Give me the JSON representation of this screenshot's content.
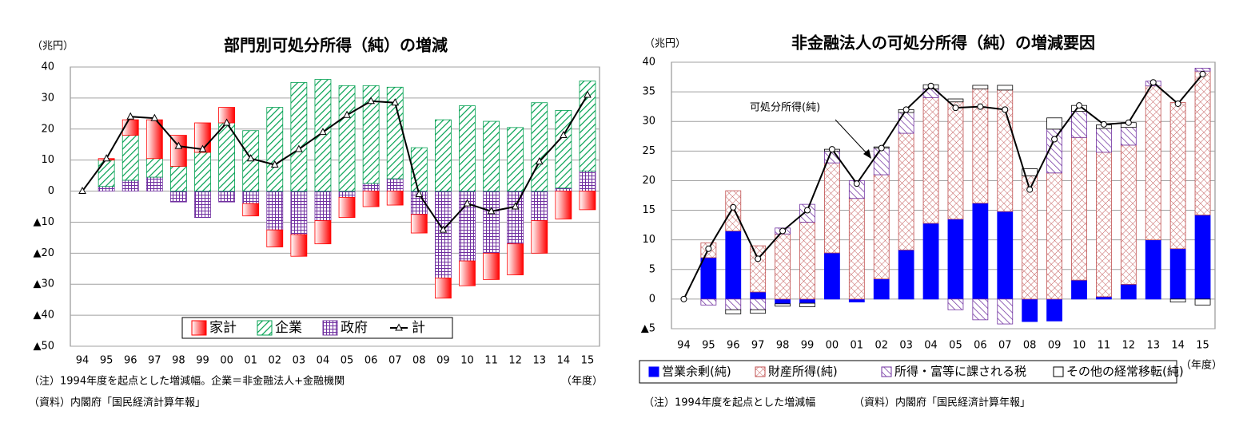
{
  "chart_data": [
    {
      "type": "bar",
      "stacked": true,
      "title": "部門別可処分所得（純）の増減",
      "unit_label": "（兆円）",
      "x_label": "（年度）",
      "notes": [
        "（注）1994年度を起点とした増減幅。企業＝非金融法人+金融機関",
        "（資料）内閣府「国民経済計算年報」"
      ],
      "categories": [
        "94",
        "95",
        "96",
        "97",
        "98",
        "99",
        "00",
        "01",
        "02",
        "03",
        "04",
        "05",
        "06",
        "07",
        "08",
        "09",
        "10",
        "11",
        "12",
        "13",
        "14",
        "15"
      ],
      "ylim": [
        -50,
        40
      ],
      "yticks": [
        40,
        30,
        20,
        10,
        0,
        {
          "value": -10,
          "label": "▲10"
        },
        {
          "value": -20,
          "label": "▲20"
        },
        {
          "value": -30,
          "label": "▲30"
        },
        {
          "value": -40,
          "label": "▲40"
        },
        {
          "value": -50,
          "label": "▲50"
        }
      ],
      "grid": true,
      "legend": "lower center",
      "series": [
        {
          "name": "政府",
          "color": "#7030a0",
          "pattern": "grid",
          "values": [
            0,
            1.5,
            3.5,
            4.5,
            -3.5,
            -8.5,
            -3.5,
            -4,
            -12.5,
            -14,
            -9.5,
            -2,
            2.5,
            4,
            -7.5,
            -28,
            -22.5,
            -20,
            -17,
            -9.5,
            1,
            6.5
          ]
        },
        {
          "name": "企業",
          "color": "#00a050",
          "pattern": "diagonal",
          "values": [
            0,
            8.5,
            14.5,
            6,
            8,
            12.5,
            22,
            19.5,
            27,
            35,
            36,
            34,
            31.5,
            29.5,
            14,
            23,
            27.5,
            22.5,
            20.5,
            28.5,
            25,
            29
          ]
        },
        {
          "name": "家計",
          "color": "#ff0000",
          "pattern": "gradient",
          "values": [
            0,
            0.5,
            5,
            12.5,
            10,
            9.5,
            5,
            -4,
            -5.5,
            -7,
            -7.5,
            -6.5,
            -5,
            -4.5,
            -6,
            -6.5,
            -8,
            -8.5,
            -10,
            -10.5,
            -9,
            -6
          ]
        },
        {
          "name": "計",
          "type": "line",
          "marker": "triangle",
          "color": "#000000",
          "values": [
            0,
            10.5,
            24,
            23.5,
            14.5,
            13.5,
            22,
            10.5,
            8.5,
            13.5,
            19,
            24.5,
            29,
            28.5,
            -1,
            -12.5,
            -4,
            -6.5,
            -5,
            9.5,
            18,
            31
          ]
        }
      ],
      "legend_order": [
        2,
        1,
        0,
        3
      ]
    },
    {
      "type": "bar",
      "stacked": true,
      "title": "非金融法人の可処分所得（純）の増減要因",
      "unit_label": "（兆円）",
      "x_label": "（年度）",
      "notes": [
        "（注）1994年度を起点とした増減幅",
        "（資料）内閣府「国民経済計算年報」"
      ],
      "categories": [
        "94",
        "95",
        "96",
        "97",
        "98",
        "99",
        "00",
        "01",
        "02",
        "03",
        "04",
        "05",
        "06",
        "07",
        "08",
        "09",
        "10",
        "11",
        "12",
        "13",
        "14",
        "15"
      ],
      "ylim": [
        -5,
        40
      ],
      "yticks": [
        40,
        35,
        30,
        25,
        20,
        15,
        10,
        5,
        0,
        {
          "value": -5,
          "label": "▲5"
        }
      ],
      "grid": true,
      "legend": "bottom",
      "series": [
        {
          "name": "営業余剰(純)",
          "color": "#0000ff",
          "pattern": "solid",
          "values": [
            0,
            7,
            11.5,
            1.2,
            -0.8,
            -0.7,
            7.8,
            -0.5,
            3.4,
            8.3,
            12.8,
            13.5,
            16.2,
            14.8,
            -3.8,
            -3.7,
            3.2,
            0.4,
            2.5,
            10,
            8.5,
            14.2
          ]
        },
        {
          "name": "財産所得(純)",
          "color": "#c05050",
          "pattern": "crosshatch",
          "values": [
            0,
            2.5,
            6.8,
            7.8,
            11,
            13,
            15.2,
            17,
            17.6,
            19.7,
            21.2,
            19.8,
            19.3,
            20.5,
            20.8,
            21.3,
            24.1,
            24.4,
            23.5,
            26,
            24.7,
            24.3
          ]
        },
        {
          "name": "所得・富等に課される税",
          "color": "#7030a0",
          "pattern": "backslash",
          "values": [
            0,
            -1,
            -1.8,
            -1.8,
            1,
            3,
            2,
            3,
            4.5,
            3.5,
            1.5,
            -1.8,
            -3.5,
            -4.2,
            0,
            7.4,
            4.4,
            4,
            3,
            0.8,
            0,
            0.5
          ]
        },
        {
          "name": "その他の経常移転(純)",
          "color": "#ffffff",
          "pattern": "none",
          "values": [
            0,
            0,
            -0.7,
            -0.6,
            -0.4,
            -0.6,
            0.3,
            0,
            0.2,
            0.5,
            0.7,
            0.5,
            0.6,
            0.8,
            1.2,
            1.9,
            1,
            0.6,
            0.8,
            0,
            -0.5,
            -1
          ]
        }
      ],
      "line": {
        "name": "可処分所得(純)",
        "marker": "circle",
        "color": "#000000",
        "values": [
          0,
          8.5,
          15.5,
          6.8,
          11.5,
          15,
          25.3,
          19.5,
          25.5,
          32,
          36,
          32.3,
          32.5,
          32,
          18.5,
          27,
          32.7,
          29.5,
          29.8,
          36.6,
          33,
          38
        ]
      }
    }
  ]
}
